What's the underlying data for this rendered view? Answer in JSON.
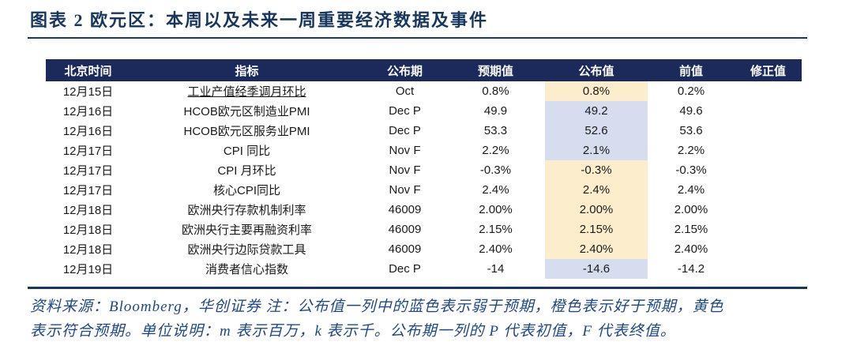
{
  "title": "图表 2  欧元区：本周以及未来一周重要经济数据及事件",
  "colors": {
    "navy_rule": "#17365d",
    "header_bg": "#1b2a5b",
    "header_text": "#ffffff",
    "body_text": "#1a1a1a",
    "footer_text": "#1f4788",
    "highlight_meets_expectation_yellow": "#fceecd",
    "highlight_below_expectation_blue": "#d6ddee"
  },
  "table": {
    "headers": [
      "北京时间",
      "指标",
      "公布期",
      "预期值",
      "公布值",
      "前值",
      "修正值"
    ],
    "rows": [
      {
        "date": "12月15日",
        "indicator": "工业产值经季调月环比",
        "underline": true,
        "period": "Oct",
        "expected": "0.8%",
        "actual": "0.8%",
        "status": "meets",
        "previous": "0.2%",
        "revised": ""
      },
      {
        "date": "12月16日",
        "indicator": "HCOB欧元区制造业PMI",
        "underline": false,
        "period": "Dec P",
        "expected": "49.9",
        "actual": "49.2",
        "status": "below",
        "previous": "49.6",
        "revised": ""
      },
      {
        "date": "12月16日",
        "indicator": "HCOB欧元区服务业PMI",
        "underline": false,
        "period": "Dec P",
        "expected": "53.3",
        "actual": "52.6",
        "status": "below",
        "previous": "53.6",
        "revised": ""
      },
      {
        "date": "12月17日",
        "indicator": "CPI 同比",
        "underline": false,
        "period": "Nov F",
        "expected": "2.2%",
        "actual": "2.1%",
        "status": "below",
        "previous": "2.2%",
        "revised": ""
      },
      {
        "date": "12月17日",
        "indicator": "CPI 月环比",
        "underline": false,
        "period": "Nov F",
        "expected": "-0.3%",
        "actual": "-0.3%",
        "status": "meets",
        "previous": "-0.3%",
        "revised": ""
      },
      {
        "date": "12月17日",
        "indicator": "核心CPI同比",
        "underline": false,
        "period": "Nov F",
        "expected": "2.4%",
        "actual": "2.4%",
        "status": "meets",
        "previous": "2.4%",
        "revised": ""
      },
      {
        "date": "12月18日",
        "indicator": "欧洲央行存款机制利率",
        "underline": false,
        "period": "46009",
        "expected": "2.00%",
        "actual": "2.00%",
        "status": "meets",
        "previous": "2.00%",
        "revised": ""
      },
      {
        "date": "12月18日",
        "indicator": "欧洲央行主要再融资利率",
        "underline": false,
        "period": "46009",
        "expected": "2.15%",
        "actual": "2.15%",
        "status": "meets",
        "previous": "2.15%",
        "revised": ""
      },
      {
        "date": "12月18日",
        "indicator": "欧洲央行边际贷款工具",
        "underline": false,
        "period": "46009",
        "expected": "2.40%",
        "actual": "2.40%",
        "status": "meets",
        "previous": "2.40%",
        "revised": ""
      },
      {
        "date": "12月19日",
        "indicator": "消费者信心指数",
        "underline": false,
        "period": "Dec P",
        "expected": "-14",
        "actual": "-14.6",
        "status": "below",
        "previous": "-14.2",
        "revised": ""
      }
    ]
  },
  "footer": {
    "line1": "资料来源：Bloomberg，华创证券  注：公布值一列中的蓝色表示弱于预期，橙色表示好于预期，黄色",
    "line2": "表示符合预期。单位说明：m 表示百万，k 表示千。公布期一列的 P 代表初值，F 代表终值。"
  }
}
